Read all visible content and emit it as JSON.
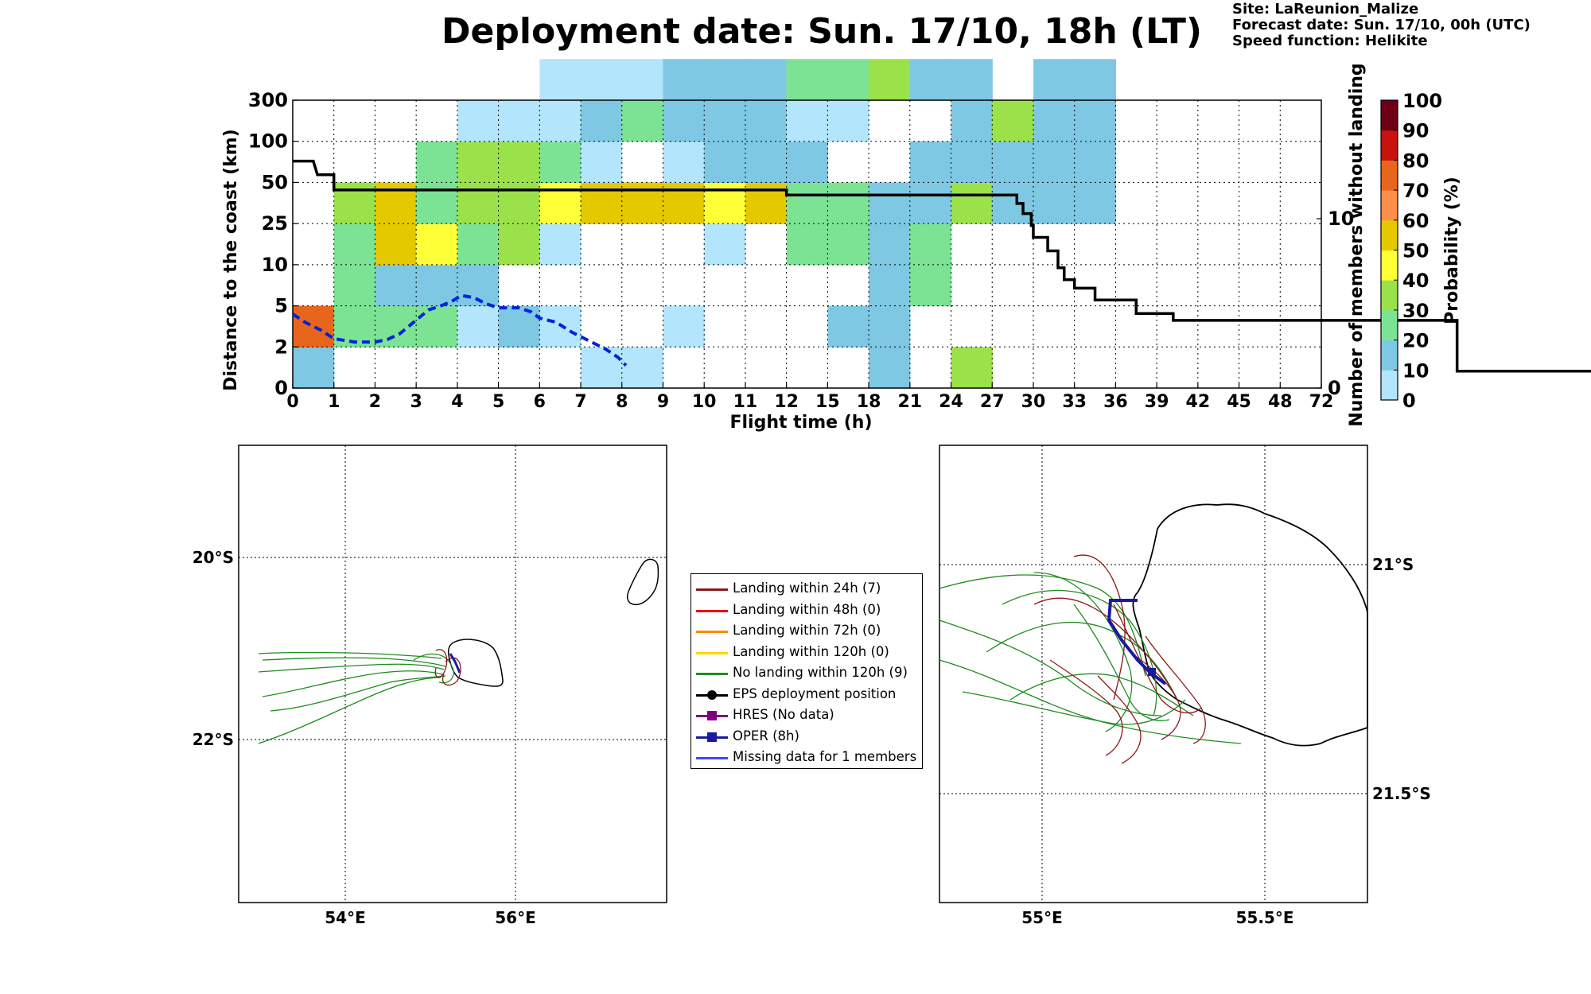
{
  "header": {
    "title": "Deployment date: Sun. 17/10, 18h (LT)",
    "site": "Site: LaReunion_Malize",
    "forecast": "Forecast date: Sun. 17/10, 00h (UTC)",
    "speed": "Speed function: Helikite"
  },
  "colors": {
    "bins": [
      "#b3e5fc",
      "#7ec8e3",
      "#7de394",
      "#9be24a",
      "#ffff38",
      "#e5c900",
      "#fd8f4a",
      "#e8661c",
      "#c8120e",
      "#6e0016"
    ],
    "cdf": "#000000",
    "landing_rate": "#0022dd",
    "landing24": "#8b1a1a",
    "landing48": "#ee1111",
    "landing72": "#ff8c00",
    "landing120": "#ffd700",
    "nolanding": "#1e8c1e",
    "oper": "#1a1aa0",
    "hres": "#800080",
    "missing": "#4444ff"
  },
  "chart_data": [
    {
      "type": "heatmap",
      "title": "Deployment date: Sun. 17/10, 18h (LT)",
      "xlabel": "Flight time (h)",
      "ylabel": "Distance to the coast (km)",
      "y2label": "Number of members without landing",
      "x_ticks": [
        "0",
        "1",
        "2",
        "3",
        "4",
        "5",
        "6",
        "7",
        "8",
        "9",
        "10",
        "11",
        "12",
        "15",
        "18",
        "21",
        "24",
        "27",
        "30",
        "33",
        "36",
        "39",
        "42",
        "45",
        "48",
        "72"
      ],
      "y_ticks": [
        "0",
        "2",
        "5",
        "10",
        "25",
        "50",
        "100",
        "300"
      ],
      "y2_ticks": [
        "0",
        "10"
      ],
      "y2_range": [
        0,
        17
      ],
      "colorbar": {
        "label": "Probability (%)",
        "ticks": [
          "0",
          "10",
          "20",
          "30",
          "40",
          "50",
          "60",
          "70",
          "80",
          "90",
          "100"
        ]
      },
      "grid": true,
      "cells": [
        [
          0,
          0,
          1
        ],
        [
          0,
          1,
          7
        ],
        [
          1,
          1,
          2
        ],
        [
          1,
          2,
          2
        ],
        [
          1,
          3,
          2
        ],
        [
          1,
          4,
          3
        ],
        [
          2,
          1,
          2
        ],
        [
          2,
          2,
          1
        ],
        [
          2,
          3,
          5
        ],
        [
          2,
          4,
          5
        ],
        [
          3,
          1,
          2
        ],
        [
          3,
          2,
          1
        ],
        [
          3,
          3,
          4
        ],
        [
          3,
          4,
          2
        ],
        [
          3,
          5,
          2
        ],
        [
          4,
          1,
          0
        ],
        [
          4,
          2,
          1
        ],
        [
          4,
          3,
          2
        ],
        [
          4,
          4,
          3
        ],
        [
          4,
          5,
          3
        ],
        [
          4,
          6,
          0
        ],
        [
          5,
          1,
          1
        ],
        [
          5,
          3,
          3
        ],
        [
          5,
          4,
          3
        ],
        [
          5,
          5,
          3
        ],
        [
          5,
          6,
          0
        ],
        [
          6,
          1,
          0
        ],
        [
          6,
          3,
          0
        ],
        [
          6,
          4,
          4
        ],
        [
          6,
          5,
          2
        ],
        [
          6,
          6,
          0
        ],
        [
          6,
          7,
          0
        ],
        [
          7,
          0,
          0
        ],
        [
          7,
          4,
          5
        ],
        [
          7,
          5,
          0
        ],
        [
          7,
          6,
          1
        ],
        [
          7,
          7,
          0
        ],
        [
          8,
          0,
          0
        ],
        [
          8,
          4,
          5
        ],
        [
          8,
          6,
          2
        ],
        [
          8,
          7,
          0
        ],
        [
          9,
          1,
          0
        ],
        [
          9,
          4,
          5
        ],
        [
          9,
          5,
          0
        ],
        [
          9,
          6,
          1
        ],
        [
          9,
          7,
          1
        ],
        [
          10,
          3,
          0
        ],
        [
          10,
          4,
          4
        ],
        [
          10,
          5,
          1
        ],
        [
          10,
          6,
          1
        ],
        [
          10,
          7,
          1
        ],
        [
          11,
          4,
          5
        ],
        [
          11,
          5,
          1
        ],
        [
          11,
          6,
          1
        ],
        [
          11,
          7,
          1
        ],
        [
          12,
          3,
          2
        ],
        [
          12,
          4,
          2
        ],
        [
          12,
          5,
          1
        ],
        [
          12,
          6,
          0
        ],
        [
          12,
          7,
          2
        ],
        [
          13,
          1,
          1
        ],
        [
          13,
          3,
          2
        ],
        [
          13,
          4,
          2
        ],
        [
          13,
          6,
          0
        ],
        [
          13,
          7,
          2
        ],
        [
          14,
          0,
          1
        ],
        [
          14,
          1,
          1
        ],
        [
          14,
          2,
          1
        ],
        [
          14,
          3,
          1
        ],
        [
          14,
          4,
          1
        ],
        [
          14,
          7,
          3
        ],
        [
          15,
          2,
          2
        ],
        [
          15,
          3,
          2
        ],
        [
          15,
          4,
          1
        ],
        [
          15,
          5,
          1
        ],
        [
          15,
          7,
          1
        ],
        [
          16,
          0,
          3
        ],
        [
          16,
          4,
          3
        ],
        [
          16,
          5,
          1
        ],
        [
          16,
          6,
          1
        ],
        [
          16,
          7,
          1
        ],
        [
          17,
          4,
          1
        ],
        [
          17,
          5,
          1
        ],
        [
          17,
          6,
          3
        ],
        [
          18,
          4,
          1
        ],
        [
          18,
          5,
          1
        ],
        [
          18,
          6,
          1
        ],
        [
          18,
          7,
          1
        ],
        [
          19,
          4,
          1
        ],
        [
          19,
          5,
          1
        ],
        [
          19,
          6,
          1
        ],
        [
          19,
          7,
          1
        ]
      ],
      "cdf_line": [
        [
          0,
          13.4
        ],
        [
          0.5,
          13.4
        ],
        [
          0.6,
          12.6
        ],
        [
          0.85,
          12.6
        ],
        [
          0.95,
          12.6
        ],
        [
          1,
          12.6
        ],
        [
          1,
          11.7
        ],
        [
          2,
          11.7
        ],
        [
          3,
          11.7
        ],
        [
          4,
          11.7
        ],
        [
          5,
          11.7
        ],
        [
          6,
          11.7
        ],
        [
          7,
          11.7
        ],
        [
          8,
          11.7
        ],
        [
          9,
          11.7
        ],
        [
          10,
          11.7
        ],
        [
          11,
          11.7
        ],
        [
          12,
          11.7
        ],
        [
          12,
          11.4
        ],
        [
          13,
          11.4
        ],
        [
          14,
          11.4
        ],
        [
          15,
          11.4
        ],
        [
          16,
          11.4
        ],
        [
          17,
          11.4
        ],
        [
          17.6,
          11.4
        ],
        [
          17.6,
          10.9
        ],
        [
          17.75,
          10.9
        ],
        [
          17.75,
          10.3
        ],
        [
          17.95,
          10.3
        ],
        [
          17.95,
          9.6
        ],
        [
          18,
          9.6
        ],
        [
          18,
          8.9
        ],
        [
          18.35,
          8.9
        ],
        [
          18.35,
          8.1
        ],
        [
          18.6,
          8.1
        ],
        [
          18.6,
          7.1
        ],
        [
          18.75,
          7.1
        ],
        [
          18.75,
          6.4
        ],
        [
          19,
          6.4
        ],
        [
          19,
          5.9
        ],
        [
          19.3,
          5.9
        ],
        [
          19.5,
          5.9
        ],
        [
          19.5,
          5.2
        ],
        [
          20.5,
          5.2
        ],
        [
          20.5,
          4.4
        ],
        [
          21,
          4.4
        ],
        [
          21.4,
          4.4
        ],
        [
          21.4,
          4.0
        ],
        [
          24,
          4.0
        ],
        [
          25,
          4.0
        ],
        [
          26,
          4.0
        ],
        [
          27,
          4.0
        ],
        [
          28,
          4.0
        ],
        [
          28.3,
          4.0
        ],
        [
          28.3,
          1.0
        ],
        [
          29,
          1.0
        ],
        [
          30,
          1.0
        ],
        [
          31,
          1.0
        ],
        [
          32,
          1.0
        ],
        [
          33,
          1.0
        ],
        [
          34,
          1.0
        ],
        [
          35,
          1.0
        ],
        [
          36,
          1.0
        ],
        [
          37,
          1.0
        ],
        [
          38,
          1.0
        ],
        [
          39,
          1.0
        ],
        [
          40,
          1.0
        ],
        [
          41,
          1.0
        ],
        [
          42,
          1.0
        ],
        [
          43,
          1.0
        ],
        [
          44,
          1.0
        ],
        [
          45,
          1.0
        ],
        [
          46,
          1.0
        ],
        [
          47,
          1.0
        ],
        [
          48,
          1.0
        ],
        [
          49,
          1.0
        ],
        [
          50,
          1.0
        ],
        [
          51,
          1.0
        ],
        [
          52,
          1.0
        ],
        [
          53,
          1.0
        ],
        [
          54,
          1.0
        ],
        [
          55,
          1.0
        ],
        [
          56,
          1.0
        ],
        [
          57,
          1.0
        ],
        [
          58,
          1.0
        ],
        [
          59,
          1.0
        ],
        [
          60,
          1.0
        ],
        [
          61,
          1.0
        ],
        [
          62,
          1.0
        ],
        [
          63,
          1.0
        ],
        [
          64,
          1.0
        ],
        [
          65,
          1.0
        ],
        [
          66,
          1.0
        ],
        [
          67,
          1.0
        ],
        [
          68,
          1.0
        ],
        [
          69,
          1.0
        ],
        [
          70,
          1.0
        ],
        [
          71,
          1.0
        ],
        [
          72,
          1.0
        ]
      ],
      "landing_rate_line": [
        [
          0,
          1.8
        ],
        [
          0.3,
          1.6
        ],
        [
          0.7,
          1.4
        ],
        [
          1.0,
          1.2
        ],
        [
          1.5,
          1.12
        ],
        [
          2.0,
          1.12
        ],
        [
          2.3,
          1.18
        ],
        [
          2.6,
          1.32
        ],
        [
          3.0,
          1.65
        ],
        [
          3.3,
          1.9
        ],
        [
          3.6,
          2.0
        ],
        [
          3.85,
          2.1
        ],
        [
          4.1,
          2.25
        ],
        [
          4.4,
          2.2
        ],
        [
          4.7,
          2.05
        ],
        [
          5.0,
          1.95
        ],
        [
          5.5,
          1.95
        ],
        [
          5.8,
          1.85
        ],
        [
          6.0,
          1.7
        ],
        [
          6.4,
          1.6
        ],
        [
          6.8,
          1.35
        ],
        [
          7.2,
          1.15
        ],
        [
          7.6,
          0.95
        ],
        [
          7.9,
          0.75
        ],
        [
          8.1,
          0.55
        ]
      ]
    },
    {
      "type": "map",
      "lat_ticks": [
        "20°S",
        "22°S"
      ],
      "lon_ticks": [
        "54°E",
        "56°E"
      ]
    },
    {
      "type": "map",
      "lat_ticks": [
        "21°S",
        "21.5°S"
      ],
      "lon_ticks": [
        "55°E",
        "55.5°E"
      ]
    }
  ],
  "legend": [
    {
      "label": "Landing within 24h (7)",
      "color": "#8b1a1a",
      "marker": "none"
    },
    {
      "label": "Landing within 48h (0)",
      "color": "#ee1111",
      "marker": "none"
    },
    {
      "label": "Landing within 72h (0)",
      "color": "#ff8c00",
      "marker": "none"
    },
    {
      "label": "Landing within 120h (0)",
      "color": "#ffd700",
      "marker": "none"
    },
    {
      "label": "No landing within 120h (9)",
      "color": "#1e8c1e",
      "marker": "none"
    },
    {
      "label": "EPS deployment position",
      "color": "#000000",
      "marker": "circle"
    },
    {
      "label": "HRES (No data)",
      "color": "#800080",
      "marker": "square"
    },
    {
      "label": "OPER (8h)",
      "color": "#1a1aa0",
      "marker": "square"
    },
    {
      "label": "Missing data for 1 members",
      "color": "#4444ff",
      "marker": "none"
    }
  ]
}
